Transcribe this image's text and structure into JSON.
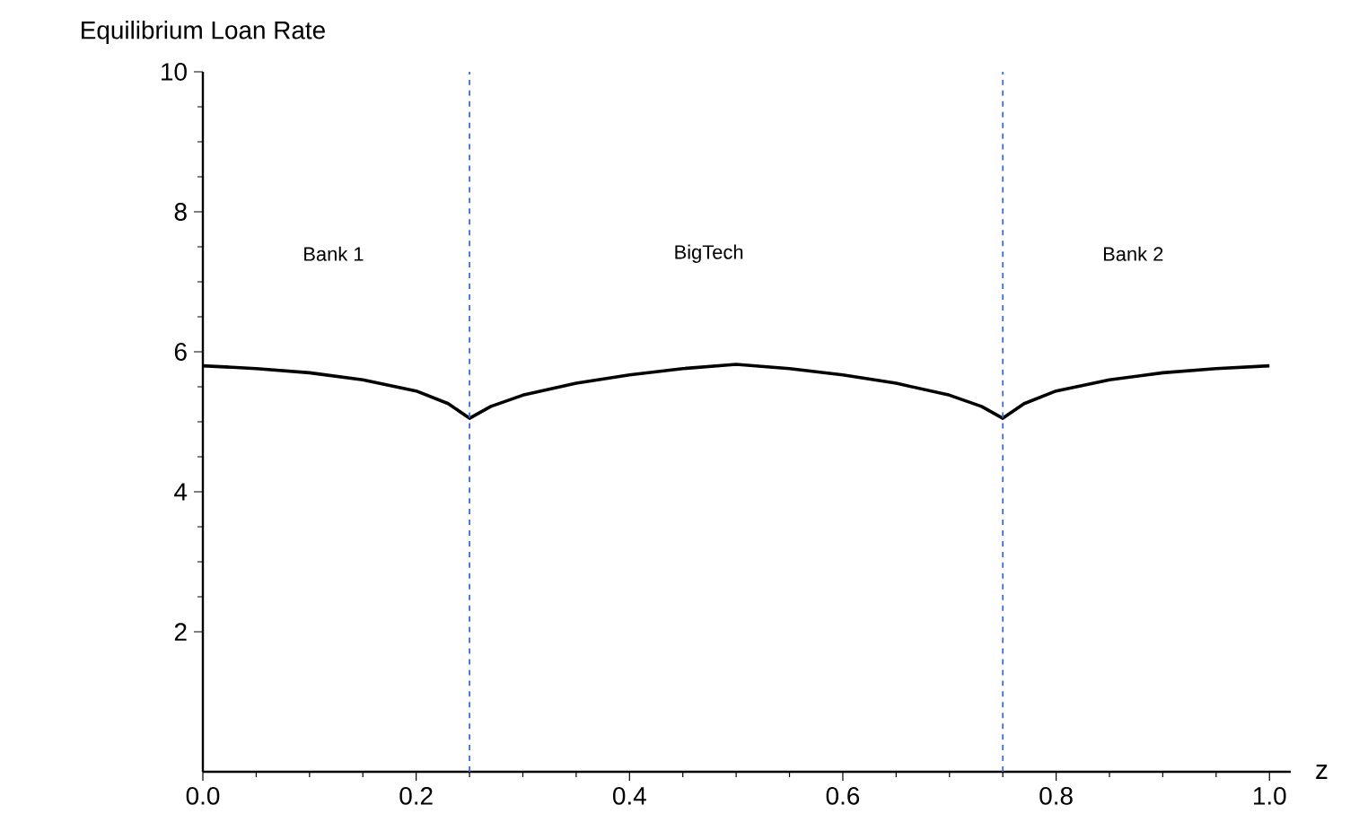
{
  "chart_data": {
    "type": "line",
    "ylabel": "Equilibrium Loan Rate",
    "xlabel": "z",
    "x": [
      0,
      0.05,
      0.1,
      0.15,
      0.2,
      0.23,
      0.25,
      0.27,
      0.3,
      0.35,
      0.4,
      0.45,
      0.5,
      0.55,
      0.6,
      0.65,
      0.7,
      0.73,
      0.75,
      0.77,
      0.8,
      0.85,
      0.9,
      0.95,
      1.0
    ],
    "series": [
      {
        "color": "#000000",
        "values": [
          5.8,
          5.76,
          5.7,
          5.6,
          5.44,
          5.26,
          5.05,
          5.22,
          5.38,
          5.55,
          5.67,
          5.76,
          5.82,
          5.76,
          5.67,
          5.55,
          5.38,
          5.22,
          5.05,
          5.26,
          5.44,
          5.6,
          5.7,
          5.76,
          5.8
        ]
      }
    ],
    "xlim": [
      0,
      1.02
    ],
    "ylim": [
      0,
      10
    ],
    "xticks": [
      {
        "value": 0,
        "label": "0.0"
      },
      {
        "value": 0.2,
        "label": "0.2"
      },
      {
        "value": 0.4,
        "label": "0.4"
      },
      {
        "value": 0.6,
        "label": "0.6"
      },
      {
        "value": 0.8,
        "label": "0.8"
      },
      {
        "value": 1,
        "label": "1.0"
      }
    ],
    "yticks": [
      2,
      4,
      6,
      8,
      10
    ],
    "ref_lines": [
      {
        "axis": "x",
        "value": 0.25,
        "color": "#3a6fd0",
        "line_style": "dashed"
      },
      {
        "axis": "x",
        "value": 0.75,
        "color": "#3a6fd0",
        "line_style": "dashed"
      }
    ],
    "annotations": [
      "Bank 1",
      "BigTech",
      "Bank 2"
    ],
    "grid": false,
    "marker": "none",
    "line_style": "solid"
  }
}
